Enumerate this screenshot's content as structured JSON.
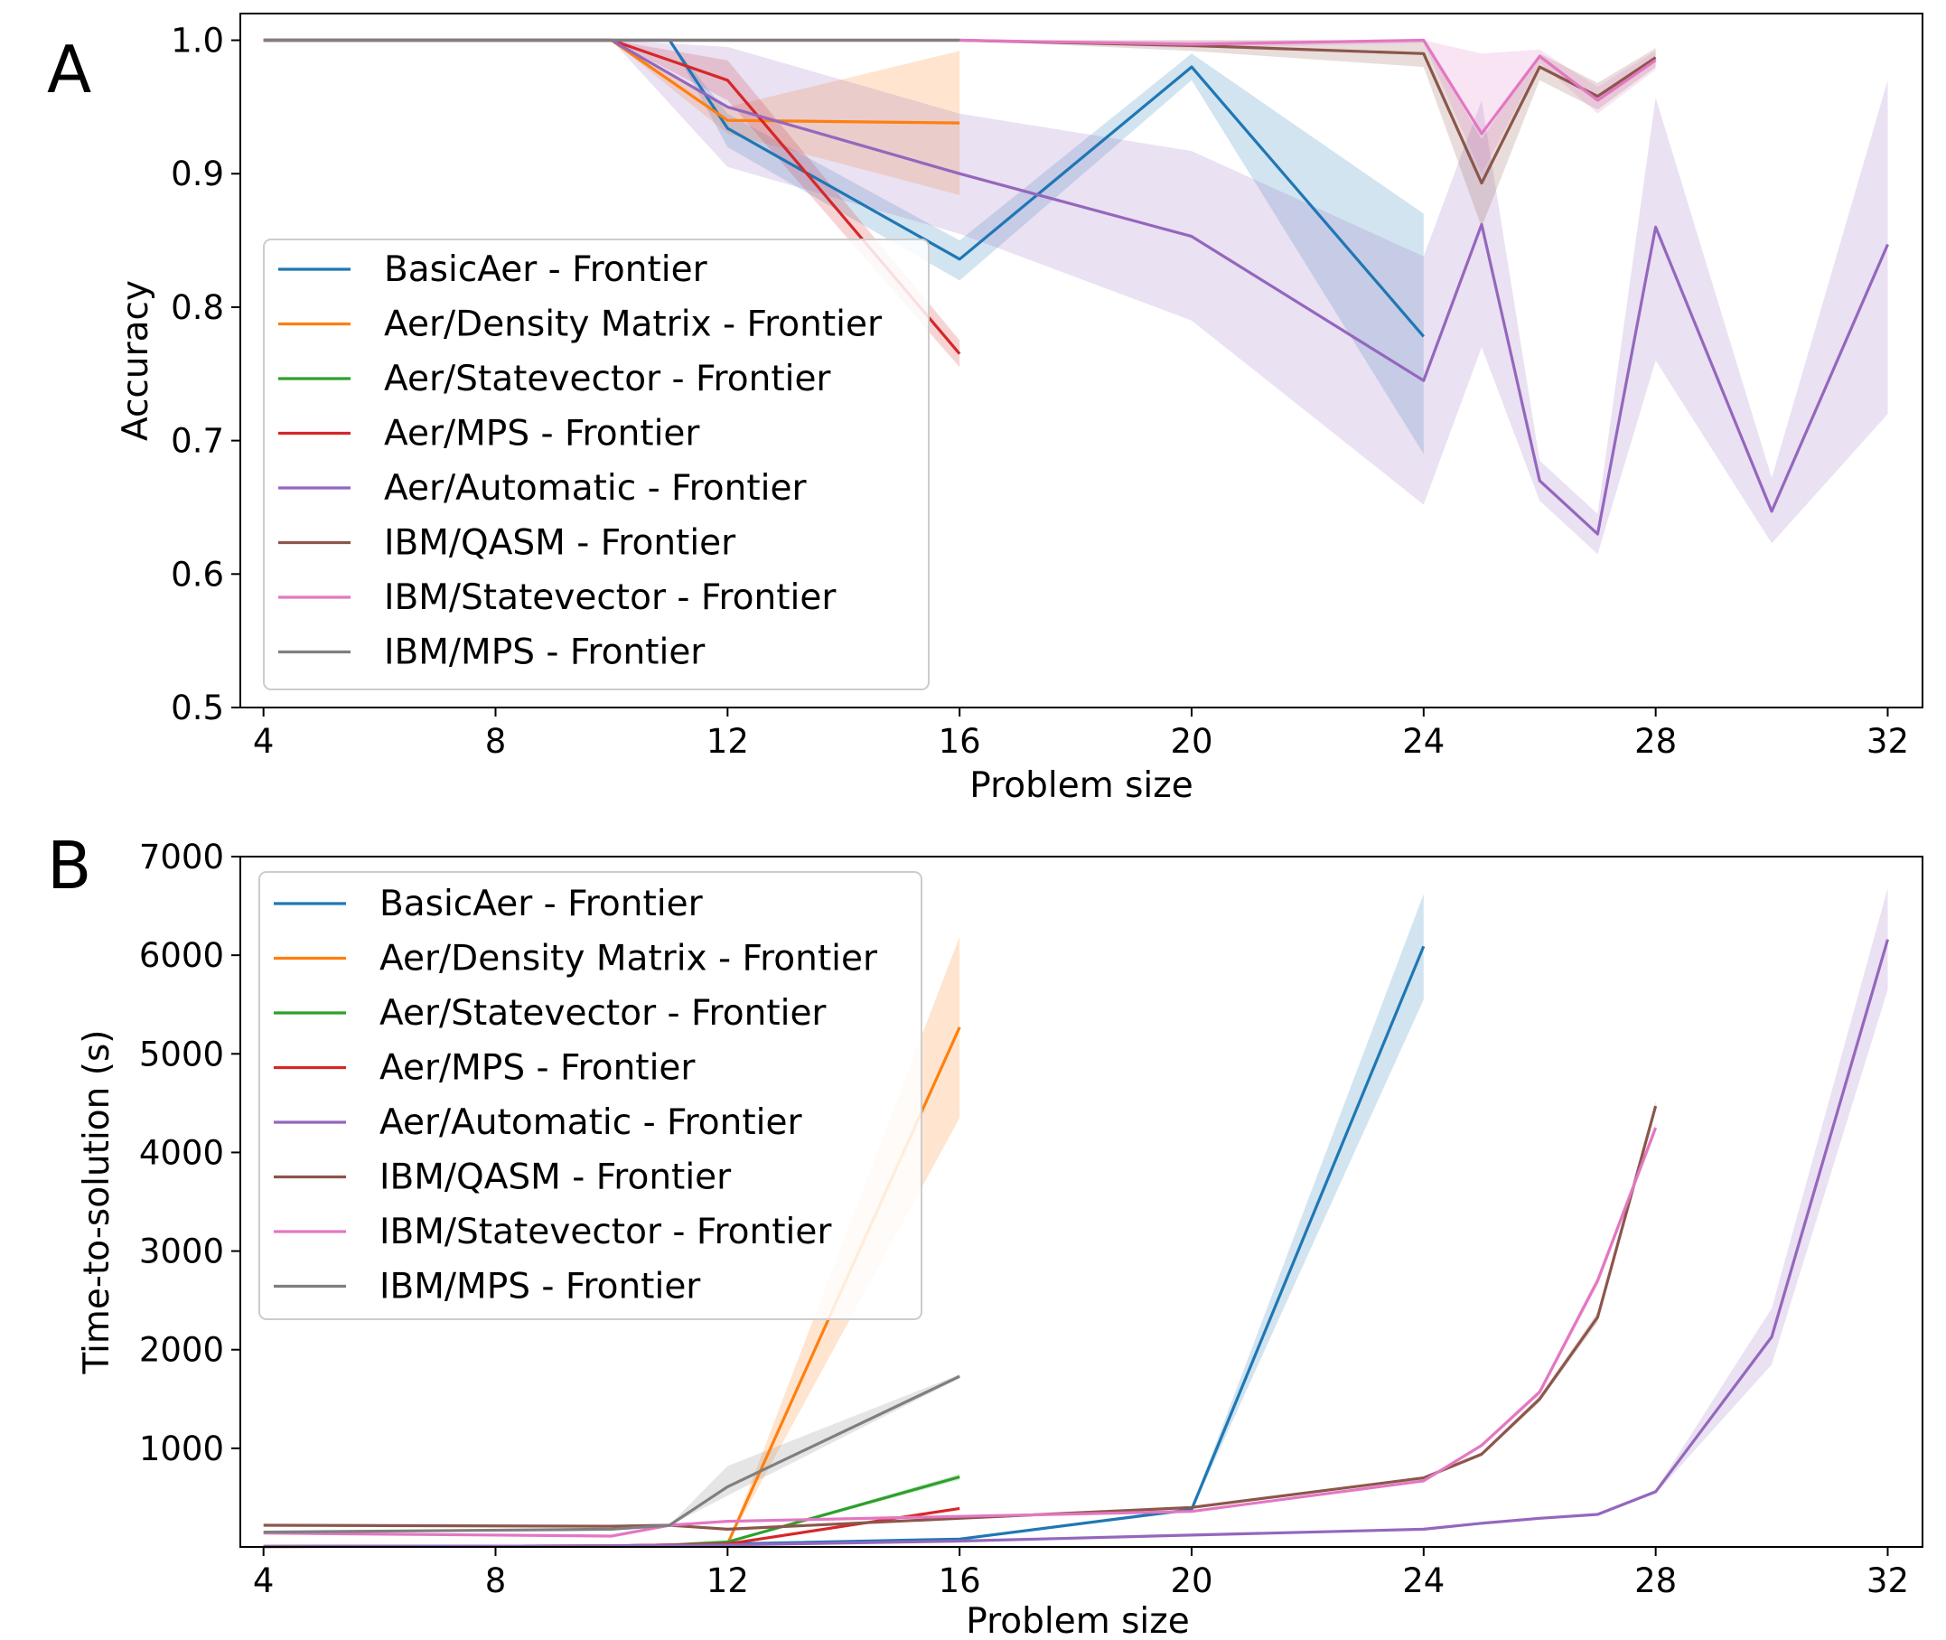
{
  "panels": [
    {
      "letter": "A",
      "chart_data": {
        "type": "line",
        "xlabel": "Problem size",
        "ylabel": "Accuracy",
        "xlim": [
          3.6,
          32.6
        ],
        "ylim": [
          0.5,
          1.02
        ],
        "xticks": [
          4,
          8,
          12,
          16,
          20,
          24,
          28,
          32
        ],
        "yticks": [
          0.5,
          0.6,
          0.7,
          0.8,
          0.9,
          1.0
        ],
        "ytick_labels": [
          "0.5",
          "0.6",
          "0.7",
          "0.8",
          "0.9",
          "1.0"
        ],
        "legend_position": "center-left",
        "series": [
          {
            "name": "BasicAer - Frontier",
            "color": "#1f77b4",
            "x": [
              4,
              10,
              11,
              12,
              16,
              20,
              24
            ],
            "y": [
              1.0,
              1.0,
              1.0,
              0.934,
              0.836,
              0.98,
              0.778
            ],
            "lower": [
              1.0,
              1.0,
              1.0,
              0.92,
              0.82,
              0.97,
              0.69
            ],
            "upper": [
              1.0,
              1.0,
              1.0,
              0.945,
              0.85,
              0.99,
              0.87
            ]
          },
          {
            "name": "Aer/Density Matrix - Frontier",
            "color": "#ff7f0e",
            "x": [
              4,
              10,
              12,
              16
            ],
            "y": [
              1.0,
              1.0,
              0.94,
              0.938
            ],
            "lower": [
              1.0,
              1.0,
              0.93,
              0.884
            ],
            "upper": [
              1.0,
              1.0,
              0.95,
              0.992
            ]
          },
          {
            "name": "Aer/Statevector - Frontier",
            "color": "#2ca02c",
            "x": [
              4,
              10
            ],
            "y": [
              1.0,
              1.0
            ],
            "lower": [
              1.0,
              1.0
            ],
            "upper": [
              1.0,
              1.0
            ]
          },
          {
            "name": "Aer/MPS - Frontier",
            "color": "#d62728",
            "x": [
              4,
              10,
              12,
              16
            ],
            "y": [
              1.0,
              1.0,
              0.97,
              0.765
            ],
            "lower": [
              1.0,
              1.0,
              0.955,
              0.755
            ],
            "upper": [
              1.0,
              1.0,
              0.985,
              0.775
            ]
          },
          {
            "name": "Aer/Automatic - Frontier",
            "color": "#9467bd",
            "x": [
              4,
              10,
              12,
              16,
              20,
              24,
              25,
              26,
              27,
              28,
              30,
              32
            ],
            "y": [
              1.0,
              1.0,
              0.95,
              0.9,
              0.853,
              0.745,
              0.862,
              0.67,
              0.63,
              0.86,
              0.647,
              0.847
            ],
            "lower": [
              1.0,
              1.0,
              0.905,
              0.855,
              0.79,
              0.652,
              0.77,
              0.655,
              0.615,
              0.76,
              0.623,
              0.72
            ],
            "upper": [
              1.0,
              1.0,
              0.995,
              0.945,
              0.917,
              0.838,
              0.955,
              0.685,
              0.645,
              0.957,
              0.672,
              0.97
            ]
          },
          {
            "name": "IBM/QASM - Frontier",
            "color": "#8c564b",
            "x": [
              4,
              16,
              20,
              24,
              25,
              26,
              27,
              28
            ],
            "y": [
              1.0,
              1.0,
              0.996,
              0.99,
              0.893,
              0.98,
              0.958,
              0.987
            ],
            "lower": [
              1.0,
              1.0,
              0.992,
              0.98,
              0.86,
              0.97,
              0.948,
              0.98
            ],
            "upper": [
              1.0,
              1.0,
              1.0,
              1.0,
              0.926,
              0.99,
              0.968,
              0.994
            ]
          },
          {
            "name": "IBM/Statevector - Frontier",
            "color": "#e377c2",
            "x": [
              4,
              16,
              20,
              24,
              25,
              26,
              27,
              28
            ],
            "y": [
              1.0,
              1.0,
              0.997,
              1.0,
              0.93,
              0.988,
              0.955,
              0.985
            ],
            "lower": [
              1.0,
              1.0,
              0.994,
              0.998,
              0.9,
              0.983,
              0.945,
              0.978
            ],
            "upper": [
              1.0,
              1.0,
              1.0,
              1.0,
              0.99,
              0.993,
              0.965,
              0.992
            ]
          },
          {
            "name": "IBM/MPS - Frontier",
            "color": "#7f7f7f",
            "x": [
              4,
              10,
              12,
              16
            ],
            "y": [
              1.0,
              1.0,
              1.0,
              1.0
            ],
            "lower": [
              1.0,
              1.0,
              1.0,
              1.0
            ],
            "upper": [
              1.0,
              1.0,
              1.0,
              1.0
            ]
          }
        ]
      }
    },
    {
      "letter": "B",
      "chart_data": {
        "type": "line",
        "xlabel": "Problem size",
        "ylabel": "Time-to-solution (s)",
        "xlim": [
          3.6,
          32.6
        ],
        "ylim": [
          0,
          7000
        ],
        "xticks": [
          4,
          8,
          12,
          16,
          20,
          24,
          28,
          32
        ],
        "yticks": [
          1000,
          2000,
          3000,
          4000,
          5000,
          6000,
          7000
        ],
        "ytick_labels": [
          "1000",
          "2000",
          "3000",
          "4000",
          "5000",
          "6000",
          "7000"
        ],
        "legend_position": "upper-left",
        "series": [
          {
            "name": "BasicAer - Frontier",
            "color": "#1f77b4",
            "x": [
              4,
              10,
              11,
              12,
              16,
              20,
              24
            ],
            "y": [
              5,
              10,
              20,
              30,
              80,
              380,
              6090
            ],
            "lower": [
              5,
              10,
              20,
              30,
              75,
              360,
              5550
            ],
            "upper": [
              5,
              10,
              20,
              30,
              85,
              400,
              6620
            ]
          },
          {
            "name": "Aer/Density Matrix - Frontier",
            "color": "#ff7f0e",
            "x": [
              4,
              10,
              11,
              12,
              16
            ],
            "y": [
              5,
              10,
              20,
              30,
              5270
            ],
            "lower": [
              5,
              10,
              20,
              30,
              4350
            ],
            "upper": [
              5,
              10,
              20,
              30,
              6190
            ]
          },
          {
            "name": "Aer/Statevector - Frontier",
            "color": "#2ca02c",
            "x": [
              4,
              10,
              11,
              12,
              16
            ],
            "y": [
              5,
              10,
              20,
              50,
              710
            ],
            "lower": [
              5,
              10,
              20,
              45,
              680
            ],
            "upper": [
              5,
              10,
              20,
              55,
              740
            ]
          },
          {
            "name": "Aer/MPS - Frontier",
            "color": "#d62728",
            "x": [
              4,
              10,
              11,
              12,
              16
            ],
            "y": [
              5,
              10,
              20,
              30,
              390
            ],
            "lower": [
              5,
              10,
              20,
              28,
              380
            ],
            "upper": [
              5,
              10,
              20,
              32,
              400
            ]
          },
          {
            "name": "Aer/Automatic - Frontier",
            "color": "#9467bd",
            "x": [
              4,
              10,
              12,
              16,
              20,
              24,
              25,
              26,
              27,
              28,
              30,
              32
            ],
            "y": [
              5,
              10,
              20,
              60,
              120,
              180,
              240,
              290,
              330,
              560,
              2130,
              6160
            ],
            "lower": [
              5,
              10,
              20,
              55,
              110,
              170,
              230,
              280,
              320,
              540,
              1850,
              5650
            ],
            "upper": [
              5,
              10,
              20,
              65,
              130,
              190,
              250,
              300,
              340,
              580,
              2420,
              6680
            ]
          },
          {
            "name": "IBM/QASM - Frontier",
            "color": "#8c564b",
            "x": [
              4,
              10,
              11,
              12,
              16,
              20,
              24,
              25,
              26,
              27,
              28
            ],
            "y": [
              220,
              210,
              220,
              180,
              290,
              400,
              700,
              940,
              1500,
              2330,
              4470
            ],
            "lower": [
              215,
              205,
              215,
              175,
              285,
              390,
              690,
              920,
              1470,
              2280,
              4420
            ],
            "upper": [
              225,
              215,
              225,
              185,
              295,
              410,
              710,
              960,
              1530,
              2380,
              4520
            ]
          },
          {
            "name": "IBM/Statevector - Frontier",
            "color": "#e377c2",
            "x": [
              4,
              10,
              11,
              12,
              16,
              20,
              24,
              25,
              26,
              27,
              28
            ],
            "y": [
              140,
              110,
              220,
              260,
              310,
              360,
              670,
              1030,
              1570,
              2700,
              4250
            ],
            "lower": [
              135,
              105,
              215,
              255,
              305,
              355,
              660,
              1010,
              1540,
              2650,
              4200
            ],
            "upper": [
              145,
              115,
              225,
              265,
              315,
              365,
              680,
              1050,
              1600,
              2750,
              4300
            ]
          },
          {
            "name": "IBM/MPS - Frontier",
            "color": "#7f7f7f",
            "x": [
              4,
              10,
              11,
              12,
              16
            ],
            "y": [
              150,
              180,
              220,
              610,
              1730
            ],
            "lower": [
              150,
              180,
              215,
              520,
              1710
            ],
            "upper": [
              150,
              180,
              225,
              820,
              1750
            ]
          }
        ]
      }
    }
  ]
}
